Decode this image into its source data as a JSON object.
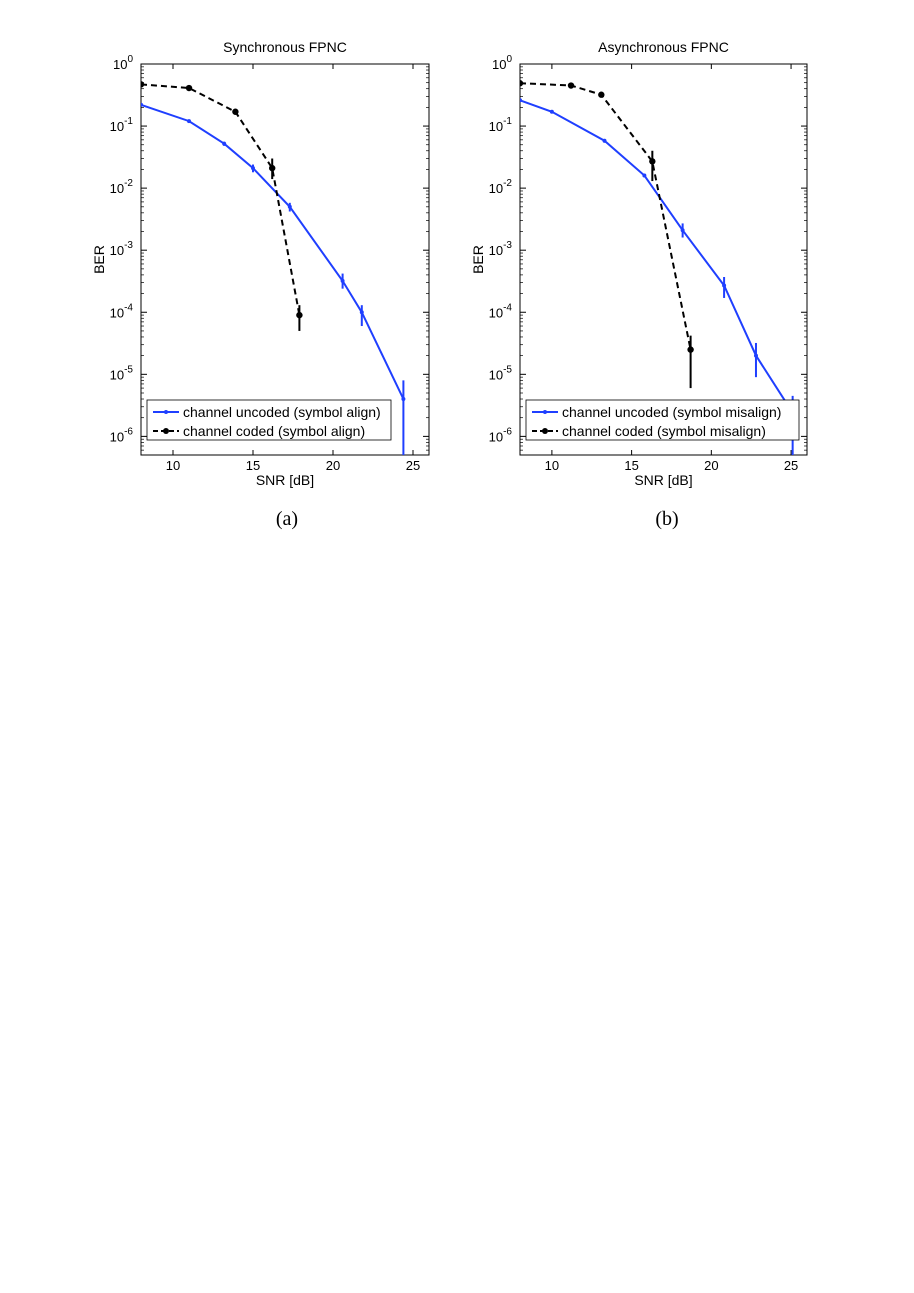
{
  "chart_data": [
    {
      "type": "line",
      "title": "Synchronous FPNC",
      "xlabel": "SNR [dB]",
      "ylabel": "BER",
      "xlim": [
        8,
        26
      ],
      "ylim_exp": [
        -6.3,
        0
      ],
      "yscale": "log",
      "xticks": [
        10,
        15,
        20,
        25
      ],
      "yticks": [
        {
          "base": "10",
          "exp": "0",
          "e": 0
        },
        {
          "base": "10",
          "exp": "-1",
          "e": -1
        },
        {
          "base": "10",
          "exp": "-2",
          "e": -2
        },
        {
          "base": "10",
          "exp": "-3",
          "e": -3
        },
        {
          "base": "10",
          "exp": "-4",
          "e": -4
        },
        {
          "base": "10",
          "exp": "-5",
          "e": -5
        },
        {
          "base": "10",
          "exp": "-6",
          "e": -6
        }
      ],
      "legend_position": "bottom-left",
      "grid": false,
      "caption": "(a)",
      "series": [
        {
          "name": "channel uncoded (symbol align)",
          "color": "#1f3fff",
          "dash": "solid",
          "marker": "dot-small",
          "x": [
            8,
            11,
            13.2,
            15,
            17.3,
            20.6,
            21.8,
            24.4
          ],
          "y": [
            0.22,
            0.12,
            0.052,
            0.021,
            0.005,
            0.00032,
            0.0001,
            4e-06
          ],
          "err_lo": [
            0.22,
            0.12,
            0.048,
            0.018,
            0.0042,
            0.00024,
            6e-05,
            5e-07
          ],
          "err_hi": [
            0.22,
            0.12,
            0.056,
            0.024,
            0.0058,
            0.00042,
            0.00013,
            8e-06
          ]
        },
        {
          "name": "channel coded (symbol align)",
          "color": "#000000",
          "dash": "dashed",
          "marker": "dot-large",
          "x": [
            8,
            11,
            13.9,
            16.2,
            17.9
          ],
          "y": [
            0.47,
            0.41,
            0.17,
            0.021,
            9e-05
          ],
          "err_lo": [
            0.47,
            0.41,
            0.16,
            0.014,
            5e-05
          ],
          "err_hi": [
            0.47,
            0.41,
            0.18,
            0.03,
            0.00013
          ]
        }
      ]
    },
    {
      "type": "line",
      "title": "Asynchronous FPNC",
      "xlabel": "SNR [dB]",
      "ylabel": "BER",
      "xlim": [
        8,
        26
      ],
      "ylim_exp": [
        -6.3,
        0
      ],
      "yscale": "log",
      "xticks": [
        10,
        15,
        20,
        25
      ],
      "yticks": [
        {
          "base": "10",
          "exp": "0",
          "e": 0
        },
        {
          "base": "10",
          "exp": "-1",
          "e": -1
        },
        {
          "base": "10",
          "exp": "-2",
          "e": -2
        },
        {
          "base": "10",
          "exp": "-3",
          "e": -3
        },
        {
          "base": "10",
          "exp": "-4",
          "e": -4
        },
        {
          "base": "10",
          "exp": "-5",
          "e": -5
        },
        {
          "base": "10",
          "exp": "-6",
          "e": -6
        }
      ],
      "legend_position": "bottom-left",
      "grid": false,
      "caption": "(b)",
      "series": [
        {
          "name": "channel uncoded (symbol misalign)",
          "color": "#1f3fff",
          "dash": "solid",
          "marker": "dot-small",
          "x": [
            8,
            10,
            13.3,
            15.8,
            18.2,
            20.8,
            22.8,
            25.1
          ],
          "y": [
            0.26,
            0.17,
            0.058,
            0.016,
            0.0021,
            0.00027,
            2e-05,
            2.4e-06
          ],
          "err_lo": [
            0.26,
            0.17,
            0.054,
            0.015,
            0.0016,
            0.00017,
            9e-06,
            3.5e-07
          ],
          "err_hi": [
            0.26,
            0.17,
            0.062,
            0.017,
            0.0027,
            0.00037,
            3.2e-05,
            4.5e-06
          ]
        },
        {
          "name": "channel coded (symbol misalign)",
          "color": "#000000",
          "dash": "dashed",
          "marker": "dot-large",
          "x": [
            8,
            11.2,
            13.1,
            16.3,
            18.7
          ],
          "y": [
            0.49,
            0.45,
            0.32,
            0.027,
            2.5e-05
          ],
          "err_lo": [
            0.49,
            0.45,
            0.31,
            0.013,
            6e-06
          ],
          "err_hi": [
            0.49,
            0.45,
            0.33,
            0.04,
            4.2e-05
          ]
        }
      ]
    }
  ]
}
